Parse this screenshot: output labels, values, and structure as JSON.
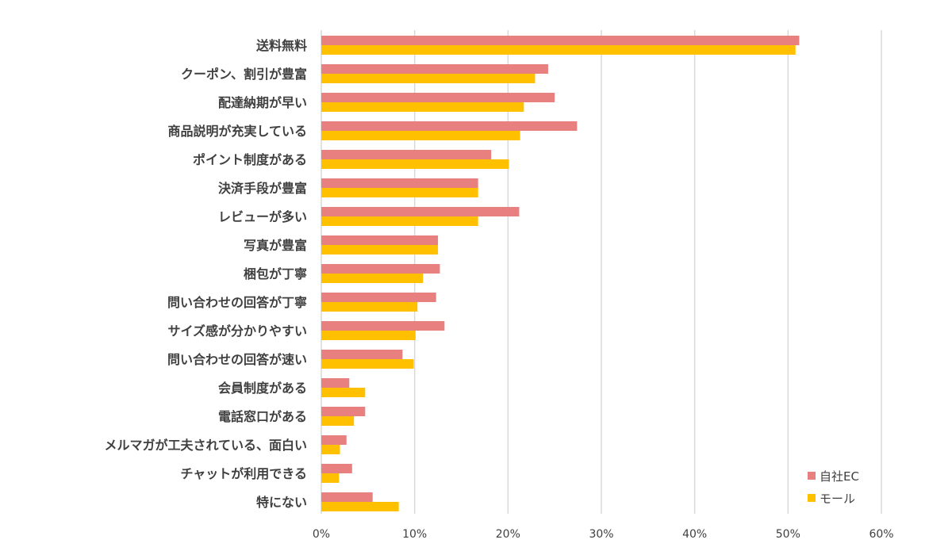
{
  "chart_data": {
    "type": "bar",
    "orientation": "horizontal",
    "categories": [
      "送料無料",
      "クーポン、割引が豊富",
      "配達納期が早い",
      "商品説明が充実している",
      "ポイント制度がある",
      "決済手段が豊富",
      "レビューが多い",
      "写真が豊富",
      "梱包が丁寧",
      "問い合わせの回答が丁寧",
      "サイズ感が分かりやすい",
      "問い合わせの回答が速い",
      "会員制度がある",
      "電話窓口がある",
      "メルマガが工夫されている、面白い",
      "チャットが利用できる",
      "特にない"
    ],
    "series": [
      {
        "name": "自社EC",
        "color": "#E8807F",
        "values": [
          51.2,
          24.3,
          25.0,
          27.4,
          18.2,
          16.8,
          21.2,
          12.5,
          12.7,
          12.3,
          13.2,
          8.7,
          3.0,
          4.7,
          2.7,
          3.3,
          5.5
        ]
      },
      {
        "name": "モール",
        "color": "#FFC000",
        "values": [
          50.8,
          22.9,
          21.7,
          21.3,
          20.1,
          16.8,
          16.8,
          12.5,
          10.9,
          10.3,
          10.1,
          9.9,
          4.7,
          3.5,
          2.0,
          1.9,
          8.3
        ]
      }
    ],
    "xlim": [
      0,
      60
    ],
    "xticks": [
      "0%",
      "10%",
      "20%",
      "30%",
      "40%",
      "50%",
      "60%"
    ],
    "xtick_values": [
      0,
      10,
      20,
      30,
      40,
      50,
      60
    ],
    "grid": true,
    "gridline_color": "#D9D9D9",
    "legend_position": "bottom-right",
    "title": "",
    "xlabel": "",
    "ylabel": ""
  }
}
